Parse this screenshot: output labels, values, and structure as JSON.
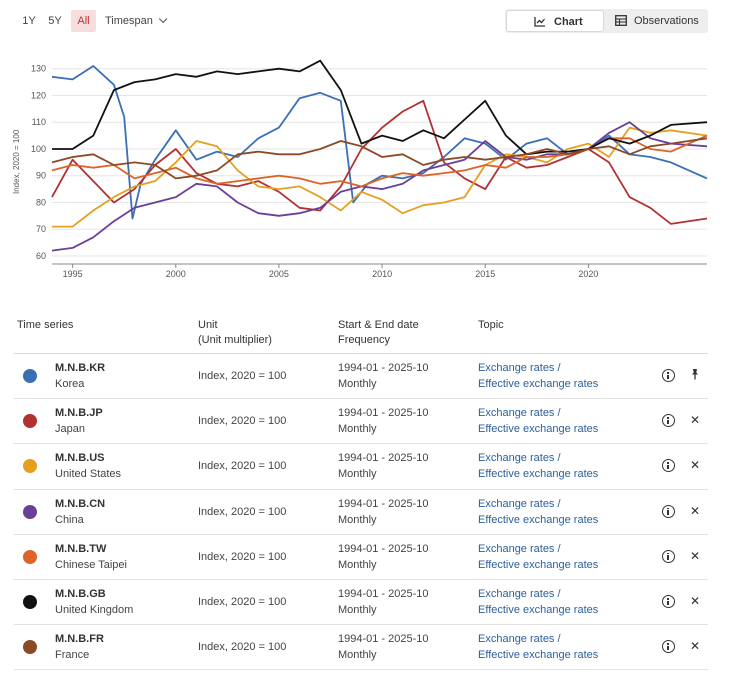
{
  "toolbar": {
    "ranges": [
      "1Y",
      "5Y",
      "All"
    ],
    "active_range": "All",
    "timespan_label": "Timespan",
    "views": {
      "chart": "Chart",
      "observations": "Observations"
    }
  },
  "chart_data": {
    "type": "line",
    "ylabel": "Index, 2020 = 100",
    "xlim": [
      1994.0,
      2025.75
    ],
    "ylim": [
      57,
      137
    ],
    "x_ticks": [
      1995,
      2000,
      2005,
      2010,
      2015,
      2020
    ],
    "y_ticks": [
      60,
      70,
      80,
      90,
      100,
      110,
      120,
      130
    ],
    "grid": "horizontal",
    "legend": "none",
    "series": [
      {
        "id": "KR",
        "color": "#3a6fb5",
        "points": [
          [
            1994,
            127
          ],
          [
            1995,
            126
          ],
          [
            1996,
            131
          ],
          [
            1997,
            124
          ],
          [
            1997.5,
            112
          ],
          [
            1997.9,
            74
          ],
          [
            1998.3,
            87
          ],
          [
            1999,
            96
          ],
          [
            2000,
            107
          ],
          [
            2001,
            96
          ],
          [
            2002,
            99
          ],
          [
            2003,
            97
          ],
          [
            2004,
            104
          ],
          [
            2005,
            108
          ],
          [
            2006,
            119
          ],
          [
            2007,
            121
          ],
          [
            2008,
            118
          ],
          [
            2008.6,
            80
          ],
          [
            2009.3,
            87
          ],
          [
            2010,
            90
          ],
          [
            2011,
            89
          ],
          [
            2012,
            91
          ],
          [
            2013,
            97
          ],
          [
            2014,
            104
          ],
          [
            2015,
            102
          ],
          [
            2016,
            96
          ],
          [
            2017,
            102
          ],
          [
            2018,
            104
          ],
          [
            2019,
            98
          ],
          [
            2020,
            100
          ],
          [
            2021,
            105
          ],
          [
            2022,
            98
          ],
          [
            2023,
            97
          ],
          [
            2024,
            95
          ],
          [
            2025.75,
            89
          ]
        ]
      },
      {
        "id": "JP",
        "color": "#b23232",
        "points": [
          [
            1994,
            82
          ],
          [
            1995,
            96
          ],
          [
            1996,
            88
          ],
          [
            1997,
            80
          ],
          [
            1998,
            85
          ],
          [
            1999,
            94
          ],
          [
            2000,
            100
          ],
          [
            2001,
            91
          ],
          [
            2002,
            87
          ],
          [
            2003,
            86
          ],
          [
            2004,
            88
          ],
          [
            2005,
            84
          ],
          [
            2006,
            78
          ],
          [
            2007,
            77
          ],
          [
            2008,
            86
          ],
          [
            2009,
            100
          ],
          [
            2010,
            108
          ],
          [
            2011,
            114
          ],
          [
            2012,
            118
          ],
          [
            2013,
            95
          ],
          [
            2014,
            89
          ],
          [
            2015,
            85
          ],
          [
            2016,
            97
          ],
          [
            2017,
            93
          ],
          [
            2018,
            94
          ],
          [
            2019,
            97
          ],
          [
            2020,
            100
          ],
          [
            2021,
            95
          ],
          [
            2022,
            82
          ],
          [
            2023,
            78
          ],
          [
            2024,
            72
          ],
          [
            2025.75,
            74
          ]
        ]
      },
      {
        "id": "US",
        "color": "#e6a020",
        "points": [
          [
            1994,
            71
          ],
          [
            1995,
            71
          ],
          [
            1996,
            77
          ],
          [
            1997,
            82
          ],
          [
            1998,
            86
          ],
          [
            1999,
            88
          ],
          [
            2000,
            95
          ],
          [
            2001,
            103
          ],
          [
            2002,
            101
          ],
          [
            2003,
            92
          ],
          [
            2004,
            86
          ],
          [
            2005,
            85
          ],
          [
            2006,
            86
          ],
          [
            2007,
            82
          ],
          [
            2008,
            77
          ],
          [
            2009,
            84
          ],
          [
            2010,
            81
          ],
          [
            2011,
            76
          ],
          [
            2012,
            79
          ],
          [
            2013,
            80
          ],
          [
            2014,
            82
          ],
          [
            2015,
            94
          ],
          [
            2016,
            98
          ],
          [
            2017,
            97
          ],
          [
            2018,
            95
          ],
          [
            2019,
            100
          ],
          [
            2020,
            102
          ],
          [
            2021,
            97
          ],
          [
            2022,
            108
          ],
          [
            2023,
            106
          ],
          [
            2024,
            107
          ],
          [
            2025.75,
            105
          ]
        ]
      },
      {
        "id": "CN",
        "color": "#6a3f98",
        "points": [
          [
            1994,
            62
          ],
          [
            1995,
            63
          ],
          [
            1996,
            67
          ],
          [
            1997,
            73
          ],
          [
            1998,
            78
          ],
          [
            1999,
            80
          ],
          [
            2000,
            82
          ],
          [
            2001,
            87
          ],
          [
            2002,
            86
          ],
          [
            2003,
            80
          ],
          [
            2004,
            76
          ],
          [
            2005,
            75
          ],
          [
            2006,
            76
          ],
          [
            2007,
            78
          ],
          [
            2008,
            84
          ],
          [
            2009,
            86
          ],
          [
            2010,
            85
          ],
          [
            2011,
            87
          ],
          [
            2012,
            92
          ],
          [
            2013,
            94
          ],
          [
            2014,
            96
          ],
          [
            2015,
            103
          ],
          [
            2016,
            97
          ],
          [
            2017,
            96
          ],
          [
            2018,
            98
          ],
          [
            2019,
            98
          ],
          [
            2020,
            100
          ],
          [
            2021,
            106
          ],
          [
            2022,
            110
          ],
          [
            2023,
            104
          ],
          [
            2024,
            102
          ],
          [
            2025.75,
            101
          ]
        ]
      },
      {
        "id": "TW",
        "color": "#dd6428",
        "points": [
          [
            1994,
            92
          ],
          [
            1995,
            94
          ],
          [
            1996,
            93
          ],
          [
            1997,
            94
          ],
          [
            1998,
            89
          ],
          [
            1999,
            91
          ],
          [
            2000,
            93
          ],
          [
            2001,
            89
          ],
          [
            2002,
            87
          ],
          [
            2003,
            88
          ],
          [
            2004,
            89
          ],
          [
            2005,
            90
          ],
          [
            2006,
            89
          ],
          [
            2007,
            87
          ],
          [
            2008,
            88
          ],
          [
            2009,
            86
          ],
          [
            2010,
            89
          ],
          [
            2011,
            91
          ],
          [
            2012,
            90
          ],
          [
            2013,
            91
          ],
          [
            2014,
            92
          ],
          [
            2015,
            94
          ],
          [
            2016,
            93
          ],
          [
            2017,
            97
          ],
          [
            2018,
            97
          ],
          [
            2019,
            98
          ],
          [
            2020,
            100
          ],
          [
            2021,
            104
          ],
          [
            2022,
            104
          ],
          [
            2023,
            100
          ],
          [
            2024,
            99
          ],
          [
            2025.75,
            105
          ]
        ]
      },
      {
        "id": "GB",
        "color": "#111111",
        "points": [
          [
            1994,
            100
          ],
          [
            1995,
            100
          ],
          [
            1996,
            105
          ],
          [
            1997,
            122
          ],
          [
            1998,
            125
          ],
          [
            1999,
            126
          ],
          [
            2000,
            128
          ],
          [
            2001,
            127
          ],
          [
            2002,
            129
          ],
          [
            2003,
            128
          ],
          [
            2004,
            129
          ],
          [
            2005,
            130
          ],
          [
            2006,
            129
          ],
          [
            2007,
            133
          ],
          [
            2008,
            122
          ],
          [
            2009,
            102
          ],
          [
            2010,
            105
          ],
          [
            2011,
            103
          ],
          [
            2012,
            107
          ],
          [
            2013,
            104
          ],
          [
            2014,
            111
          ],
          [
            2015,
            118
          ],
          [
            2016,
            105
          ],
          [
            2017,
            98
          ],
          [
            2018,
            99
          ],
          [
            2019,
            99
          ],
          [
            2020,
            100
          ],
          [
            2021,
            104
          ],
          [
            2022,
            102
          ],
          [
            2023,
            105
          ],
          [
            2024,
            109
          ],
          [
            2025.75,
            110
          ]
        ]
      },
      {
        "id": "FR",
        "color": "#8b4a24",
        "points": [
          [
            1994,
            95
          ],
          [
            1995,
            97
          ],
          [
            1996,
            98
          ],
          [
            1997,
            94
          ],
          [
            1998,
            95
          ],
          [
            1999,
            94
          ],
          [
            2000,
            89
          ],
          [
            2001,
            90
          ],
          [
            2002,
            92
          ],
          [
            2003,
            98
          ],
          [
            2004,
            99
          ],
          [
            2005,
            98
          ],
          [
            2006,
            98
          ],
          [
            2007,
            100
          ],
          [
            2008,
            103
          ],
          [
            2009,
            101
          ],
          [
            2010,
            97
          ],
          [
            2011,
            98
          ],
          [
            2012,
            94
          ],
          [
            2013,
            96
          ],
          [
            2014,
            97
          ],
          [
            2015,
            96
          ],
          [
            2016,
            97
          ],
          [
            2017,
            98
          ],
          [
            2018,
            100
          ],
          [
            2019,
            98
          ],
          [
            2020,
            100
          ],
          [
            2021,
            101
          ],
          [
            2022,
            98
          ],
          [
            2023,
            101
          ],
          [
            2024,
            102
          ],
          [
            2025.75,
            104
          ]
        ]
      }
    ]
  },
  "table": {
    "headers": {
      "series": "Time series",
      "unit": "Unit",
      "unit_mult": "(Unit multiplier)",
      "dates": "Start & End date",
      "frequency": "Frequency",
      "topic": "Topic"
    },
    "rows": [
      {
        "code": "M.N.B.KR",
        "country": "Korea",
        "color": "#3a6fb5",
        "unit": "Index, 2020 = 100",
        "dates": "1994-01 - 2025-10",
        "frequency": "Monthly",
        "topic1": "Exchange rates /",
        "topic2": "Effective exchange rates",
        "action": "pin"
      },
      {
        "code": "M.N.B.JP",
        "country": "Japan",
        "color": "#b23232",
        "unit": "Index, 2020 = 100",
        "dates": "1994-01 - 2025-10",
        "frequency": "Monthly",
        "topic1": "Exchange rates /",
        "topic2": "Effective exchange rates",
        "action": "close"
      },
      {
        "code": "M.N.B.US",
        "country": "United States",
        "color": "#e6a020",
        "unit": "Index, 2020 = 100",
        "dates": "1994-01 - 2025-10",
        "frequency": "Monthly",
        "topic1": "Exchange rates /",
        "topic2": "Effective exchange rates",
        "action": "close"
      },
      {
        "code": "M.N.B.CN",
        "country": "China",
        "color": "#6a3f98",
        "unit": "Index, 2020 = 100",
        "dates": "1994-01 - 2025-10",
        "frequency": "Monthly",
        "topic1": "Exchange rates /",
        "topic2": "Effective exchange rates",
        "action": "close"
      },
      {
        "code": "M.N.B.TW",
        "country": "Chinese Taipei",
        "color": "#dd6428",
        "unit": "Index, 2020 = 100",
        "dates": "1994-01 - 2025-10",
        "frequency": "Monthly",
        "topic1": "Exchange rates /",
        "topic2": "Effective exchange rates",
        "action": "close"
      },
      {
        "code": "M.N.B.GB",
        "country": "United Kingdom",
        "color": "#111111",
        "unit": "Index, 2020 = 100",
        "dates": "1994-01 - 2025-10",
        "frequency": "Monthly",
        "topic1": "Exchange rates /",
        "topic2": "Effective exchange rates",
        "action": "close"
      },
      {
        "code": "M.N.B.FR",
        "country": "France",
        "color": "#8b4a24",
        "unit": "Index, 2020 = 100",
        "dates": "1994-01 - 2025-10",
        "frequency": "Monthly",
        "topic1": "Exchange rates /",
        "topic2": "Effective exchange rates",
        "action": "close"
      }
    ]
  }
}
